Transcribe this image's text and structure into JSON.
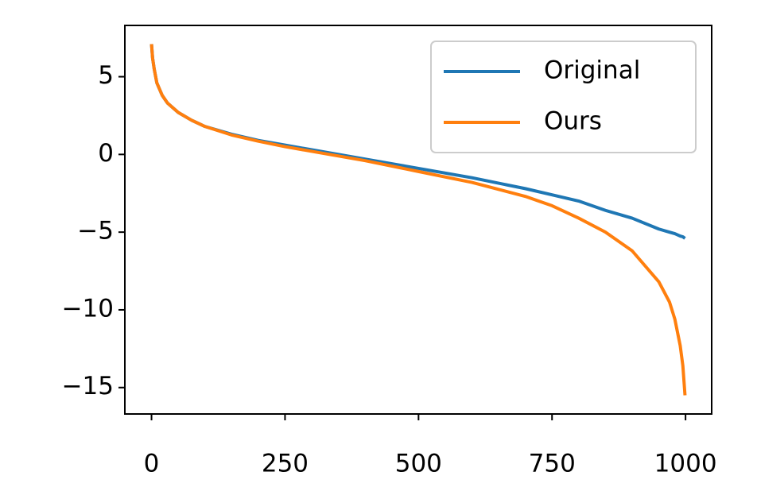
{
  "chart_data": {
    "type": "line",
    "x": [
      0,
      2,
      5,
      10,
      20,
      30,
      50,
      75,
      100,
      150,
      200,
      250,
      300,
      400,
      500,
      600,
      700,
      750,
      800,
      850,
      900,
      950,
      970,
      980,
      990,
      995,
      999
    ],
    "series": [
      {
        "name": "Original",
        "color": "#1f77b4",
        "values": [
          7.1,
          6.2,
          5.5,
          4.6,
          3.8,
          3.3,
          2.7,
          2.2,
          1.8,
          1.3,
          0.9,
          0.6,
          0.3,
          -0.3,
          -0.9,
          -1.5,
          -2.2,
          -2.6,
          -3.0,
          -3.6,
          -4.1,
          -4.8,
          -5.0,
          -5.1,
          -5.25,
          -5.3,
          -5.4
        ]
      },
      {
        "name": "Ours",
        "color": "#ff7f0e",
        "values": [
          7.1,
          6.2,
          5.5,
          4.6,
          3.8,
          3.3,
          2.7,
          2.2,
          1.8,
          1.25,
          0.85,
          0.5,
          0.2,
          -0.4,
          -1.1,
          -1.8,
          -2.7,
          -3.3,
          -4.1,
          -5.0,
          -6.2,
          -8.2,
          -9.5,
          -10.6,
          -12.3,
          -13.6,
          -15.5
        ]
      }
    ],
    "xlim": [
      -49.95,
      1048.95
    ],
    "ylim": [
      -16.7,
      8.3
    ],
    "xticks": [
      0,
      250,
      500,
      750,
      1000
    ],
    "yticks": [
      {
        "value": -15,
        "label": "−15"
      },
      {
        "value": -10,
        "label": "−10"
      },
      {
        "value": -5,
        "label": "−5"
      },
      0,
      5
    ],
    "legend": "upper right"
  }
}
